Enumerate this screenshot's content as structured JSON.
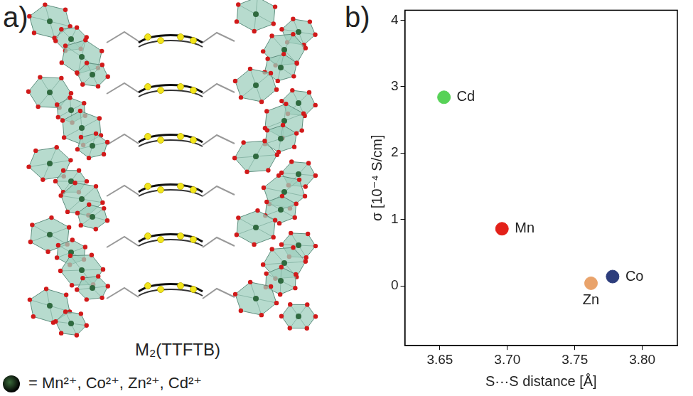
{
  "panel_a": {
    "label": "a)",
    "caption": "M₂(TTFTB)",
    "legend_text": "=  Mn²⁺, Co²⁺, Zn²⁺, Cd²⁺"
  },
  "chart_data": {
    "type": "scatter",
    "title": "b)",
    "x_label": "S···S distance [Å]",
    "y_label": "σ [10⁻⁴ S/cm]",
    "series": [
      {
        "name": "Cd",
        "color": "#57d257",
        "x": [
          3.653
        ],
        "values": [
          2.84
        ]
      },
      {
        "name": "Mn",
        "color": "#e32119",
        "x": [
          3.696
        ],
        "values": [
          0.86
        ]
      },
      {
        "name": "Zn",
        "color": "#e9a36b",
        "x": [
          3.762
        ],
        "values": [
          0.04
        ]
      },
      {
        "name": "Co",
        "color": "#2d3d7c",
        "x": [
          3.778
        ],
        "values": [
          0.14
        ]
      }
    ],
    "xlim": [
      3.624,
      3.826
    ],
    "xticks": [
      3.65,
      {
        "value": 3.7,
        "label": "3.70"
      },
      3.75,
      {
        "value": 3.8,
        "label": "3.80"
      }
    ],
    "ylim": [
      -0.9,
      4.15
    ],
    "yticks": [
      0,
      1,
      2,
      3,
      4
    ],
    "grid": false,
    "marker": "circle"
  }
}
